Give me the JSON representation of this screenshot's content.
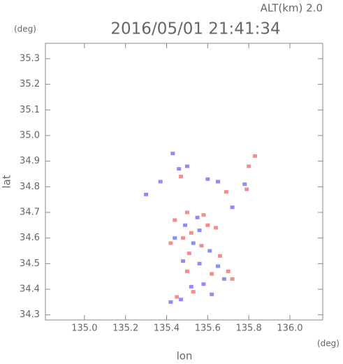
{
  "chart_data": {
    "type": "scatter",
    "title": "2016/05/01 21:41:34",
    "subtitle": "ALT(km) 2.0",
    "x_label": "lon",
    "y_label": "lat",
    "x_unit": "(deg)",
    "y_unit": "(deg)",
    "xlim": [
      134.81,
      136.16
    ],
    "ylim": [
      34.28,
      35.36
    ],
    "xticks": [
      {
        "value": 135.0,
        "label": "135.0"
      },
      135.2,
      135.4,
      135.6,
      135.8,
      {
        "value": 136.0,
        "label": "136.0"
      }
    ],
    "yticks": [
      34.3,
      34.4,
      34.5,
      34.6,
      34.7,
      34.8,
      34.9,
      {
        "value": 35.0,
        "label": "35.0"
      },
      35.1,
      35.2,
      35.3
    ],
    "series": [
      {
        "color": "#7070f0",
        "x": [
          135.43,
          135.46,
          135.6,
          135.65,
          135.3,
          135.49,
          135.56,
          135.44,
          135.53,
          135.61,
          135.48,
          135.56,
          135.65,
          135.58,
          135.52,
          135.68,
          135.62,
          135.47,
          135.42,
          135.55,
          135.5,
          135.72,
          135.78,
          135.37
        ],
        "y": [
          34.93,
          34.87,
          34.83,
          34.82,
          34.77,
          34.65,
          34.63,
          34.6,
          34.58,
          34.55,
          34.51,
          34.5,
          34.49,
          34.42,
          34.41,
          34.44,
          34.38,
          34.36,
          34.35,
          34.68,
          34.88,
          34.72,
          34.81,
          34.82
        ]
      },
      {
        "color": "#f07070",
        "x": [
          135.83,
          135.8,
          135.79,
          135.5,
          135.58,
          135.44,
          135.6,
          135.52,
          135.48,
          135.57,
          135.42,
          135.51,
          135.66,
          135.5,
          135.7,
          135.72,
          135.62,
          135.45,
          135.53,
          135.69,
          135.64,
          135.47
        ],
        "y": [
          34.92,
          34.88,
          34.79,
          34.7,
          34.69,
          34.67,
          34.65,
          34.62,
          34.6,
          34.57,
          34.58,
          34.54,
          34.53,
          34.47,
          34.47,
          34.44,
          34.46,
          34.37,
          34.39,
          34.78,
          34.64,
          34.84
        ]
      }
    ]
  }
}
